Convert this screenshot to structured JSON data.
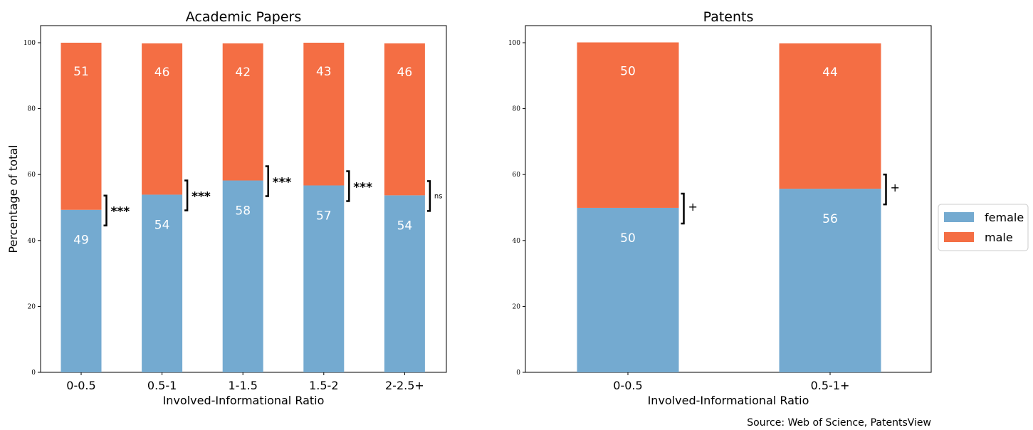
{
  "chart_data": [
    {
      "type": "bar",
      "stacked": true,
      "title": "Academic Papers",
      "xlabel": "Involved-Informational Ratio",
      "ylabel": "Percentage of total",
      "ylim": [
        0,
        100
      ],
      "yticks": [
        "0",
        "20",
        "40",
        "60",
        "80",
        "100"
      ],
      "categories": [
        "0-0.5",
        "0.5-1",
        "1-1.5",
        "1.5-2",
        "2-2.5+"
      ],
      "series": [
        {
          "name": "female",
          "values": [
            49,
            54,
            58,
            57,
            54
          ]
        },
        {
          "name": "male",
          "values": [
            51,
            46,
            42,
            43,
            46
          ]
        }
      ],
      "series_values_exact": {
        "female": [
          49.3,
          53.9,
          58.2,
          56.7,
          53.7
        ],
        "male": [
          50.7,
          45.9,
          41.6,
          43.3,
          46.1
        ]
      },
      "significance": [
        "***",
        "***",
        "***",
        "***",
        "ns"
      ],
      "grid": false
    },
    {
      "type": "bar",
      "stacked": true,
      "title": "Patents",
      "xlabel": "Involved-Informational Ratio",
      "ylabel": "",
      "ylim": [
        0,
        100
      ],
      "yticks": [
        "0",
        "20",
        "40",
        "60",
        "80",
        "100"
      ],
      "categories": [
        "0-0.5",
        "0.5-1+"
      ],
      "series": [
        {
          "name": "female",
          "values": [
            50,
            56
          ]
        },
        {
          "name": "male",
          "values": [
            50,
            44
          ]
        }
      ],
      "series_values_exact": {
        "female": [
          49.9,
          55.7
        ],
        "male": [
          50.2,
          44.1
        ]
      },
      "significance": [
        "+",
        "+"
      ],
      "grid": false
    }
  ],
  "legend": {
    "placement": "right",
    "items": [
      {
        "label": "female",
        "color": "#74aad0"
      },
      {
        "label": "male",
        "color": "#f46e44"
      }
    ]
  },
  "source": "Source: Web of Science, PatentsView",
  "colors": {
    "female": "#74aad0",
    "male": "#f46e44"
  }
}
